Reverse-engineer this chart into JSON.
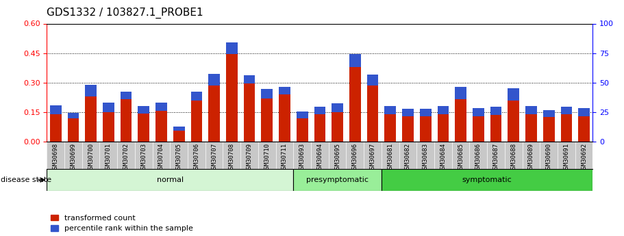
{
  "title": "GDS1332 / 103827.1_PROBE1",
  "categories": [
    "GSM30698",
    "GSM30699",
    "GSM30700",
    "GSM30701",
    "GSM30702",
    "GSM30703",
    "GSM30704",
    "GSM30705",
    "GSM30706",
    "GSM30707",
    "GSM30708",
    "GSM30709",
    "GSM30710",
    "GSM30711",
    "GSM30693",
    "GSM30694",
    "GSM30695",
    "GSM30696",
    "GSM30697",
    "GSM30681",
    "GSM30682",
    "GSM30683",
    "GSM30684",
    "GSM30685",
    "GSM30686",
    "GSM30687",
    "GSM30688",
    "GSM30689",
    "GSM30690",
    "GSM30691",
    "GSM30692"
  ],
  "red_values": [
    0.138,
    0.118,
    0.23,
    0.148,
    0.215,
    0.142,
    0.155,
    0.055,
    0.21,
    0.285,
    0.445,
    0.295,
    0.22,
    0.24,
    0.118,
    0.138,
    0.148,
    0.38,
    0.285,
    0.14,
    0.13,
    0.13,
    0.14,
    0.215,
    0.13,
    0.135,
    0.21,
    0.14,
    0.125,
    0.138,
    0.13
  ],
  "blue_values": [
    0.045,
    0.028,
    0.06,
    0.05,
    0.04,
    0.038,
    0.042,
    0.02,
    0.045,
    0.06,
    0.06,
    0.042,
    0.048,
    0.038,
    0.035,
    0.04,
    0.048,
    0.065,
    0.055,
    0.042,
    0.038,
    0.038,
    0.042,
    0.065,
    0.04,
    0.042,
    0.06,
    0.042,
    0.035,
    0.04,
    0.04
  ],
  "groups": [
    {
      "label": "normal",
      "start": 0,
      "end": 13,
      "color": "#d4f5d4"
    },
    {
      "label": "presymptomatic",
      "start": 14,
      "end": 18,
      "color": "#99ee99"
    },
    {
      "label": "symptomatic",
      "start": 19,
      "end": 30,
      "color": "#44cc44"
    }
  ],
  "disease_state_label": "disease state",
  "ylim_left": [
    0,
    0.6
  ],
  "ylim_right": [
    0,
    100
  ],
  "yticks_left": [
    0,
    0.15,
    0.3,
    0.45,
    0.6
  ],
  "yticks_right": [
    0,
    25,
    50,
    75,
    100
  ],
  "hlines": [
    0.15,
    0.3,
    0.45
  ],
  "bar_color_red": "#cc2200",
  "bar_color_blue": "#3355cc",
  "legend_entries": [
    "transformed count",
    "percentile rank within the sample"
  ],
  "title_fontsize": 11,
  "tick_fontsize": 6.5,
  "label_fontsize": 8,
  "group_label_fontsize": 8,
  "xtick_bg_color": "#c8c8c8"
}
